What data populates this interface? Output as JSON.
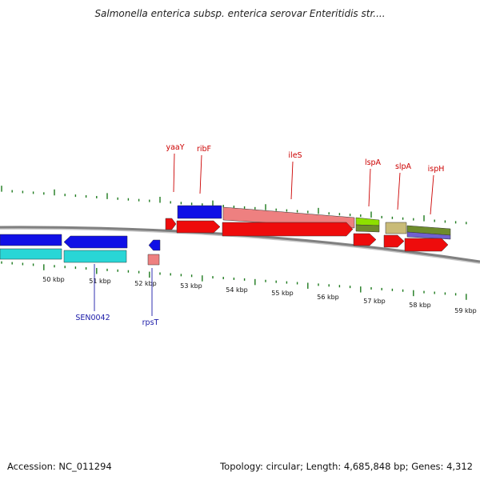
{
  "title": "Salmonella enterica subsp. enterica serovar Enteritidis str....",
  "footer": {
    "accession": "Accession: NC_011294",
    "summary": "Topology: circular; Length: 4,685,848 bp; Genes: 4,312"
  },
  "ruler_labels": [
    "50 kbp",
    "51 kbp",
    "52 kbp",
    "53 kbp",
    "54 kbp",
    "55 kbp",
    "56 kbp",
    "57 kbp",
    "58 kbp",
    "59 kbp"
  ],
  "gene_labels_top": [
    "yaaY",
    "ribF",
    "ileS",
    "lspA",
    "slpA",
    "ispH"
  ],
  "gene_labels_bottom": [
    "SEN0042",
    "rpsT"
  ],
  "colors": {
    "top_label": "#cc0000",
    "bottom_label": "#1a1aa8",
    "tick": "#1d7a1d",
    "backbone": "#808080",
    "blue": "#1010e6",
    "cyan": "#29d6d6",
    "red": "#ee0c0c",
    "salmon": "#ee8080",
    "lime": "#8ee000",
    "olive": "#6e8c2c",
    "khaki": "#c9bb78",
    "purple": "#7060d0"
  }
}
